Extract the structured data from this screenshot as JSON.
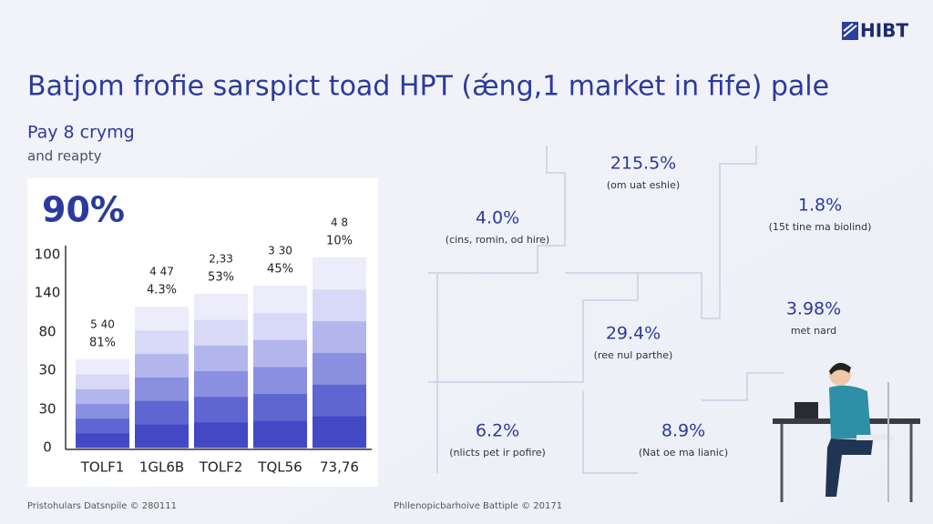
{
  "logo": "HIBT",
  "title": "Batjom frofie sarspict toad HPT (ǽng,1 market in fife) pale",
  "subtitle": "Pay 8 crymg",
  "subtitle_line2": "and reapty",
  "panel": {
    "headline": "90%",
    "axis_labels": [
      "100",
      "140",
      "80",
      "30",
      "30",
      "0"
    ],
    "bars": [
      {
        "top": "5 40",
        "value": "81%",
        "label": "TOLF1"
      },
      {
        "top": "4 47",
        "value": "4.3%",
        "label": "1GL6B"
      },
      {
        "top": "2,33",
        "value": "53%",
        "label": "TOLF2"
      },
      {
        "top": "3 30",
        "value": "45%",
        "label": "TQL56"
      },
      {
        "top": "4 8",
        "value": "10%",
        "label": "73,76"
      }
    ]
  },
  "stats": [
    {
      "value": "215.5%",
      "caption": "(om uat eshie)"
    },
    {
      "value": "4.0%",
      "caption": "(cins, romin, od hire)"
    },
    {
      "value": "1.8%",
      "caption": "(15t tine ma biolind)"
    },
    {
      "value": "3.98%",
      "caption": "met nard"
    },
    {
      "value": "29.4%",
      "caption": "(ree nul parthe)"
    },
    {
      "value": "6.2%",
      "caption": "(nlicts pet ir pofire)"
    },
    {
      "value": "8.9%",
      "caption": "(Nat oe ma lianic)"
    }
  ],
  "footer": [
    "Pristohulars Datsnpile © 280111",
    "Phllenopicbarhoive Battiple © 20171"
  ]
}
